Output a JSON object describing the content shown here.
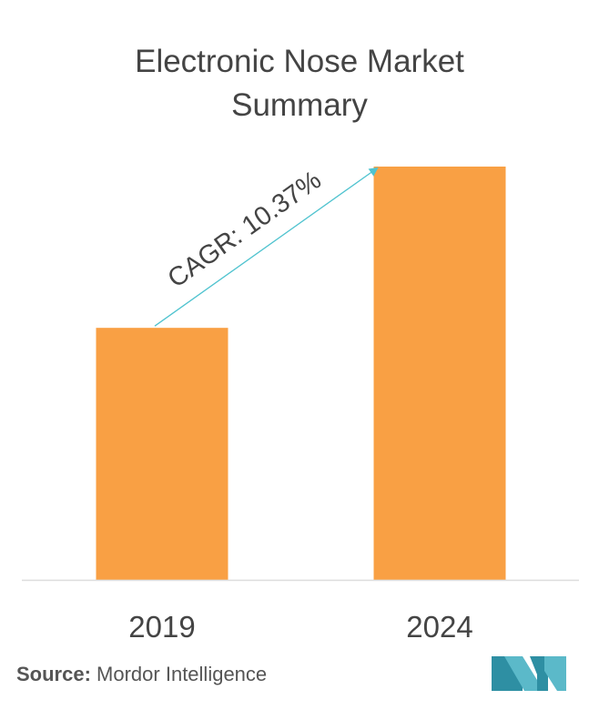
{
  "chart_data": {
    "type": "bar",
    "title_lines": [
      "Electronic Nose Market",
      "Summary"
    ],
    "categories": [
      "2019",
      "2024"
    ],
    "values": [
      1.0,
      1.64
    ],
    "ylim": [
      0,
      1.64
    ],
    "grid": false,
    "bar_color": "#F9A044",
    "annotation": {
      "text": "CAGR: 10.37%",
      "from": "2019",
      "to": "2024",
      "arrow_color": "#4FC3CF"
    }
  },
  "source": {
    "label": "Source:",
    "text": "Mordor Intelligence"
  },
  "colors": {
    "title": "#444444",
    "axis": "#DDDDDD",
    "tick_label": "#444444",
    "logo": "#5BB9C9"
  },
  "logo": {
    "icon": "mordor-intelligence-logo-icon"
  }
}
